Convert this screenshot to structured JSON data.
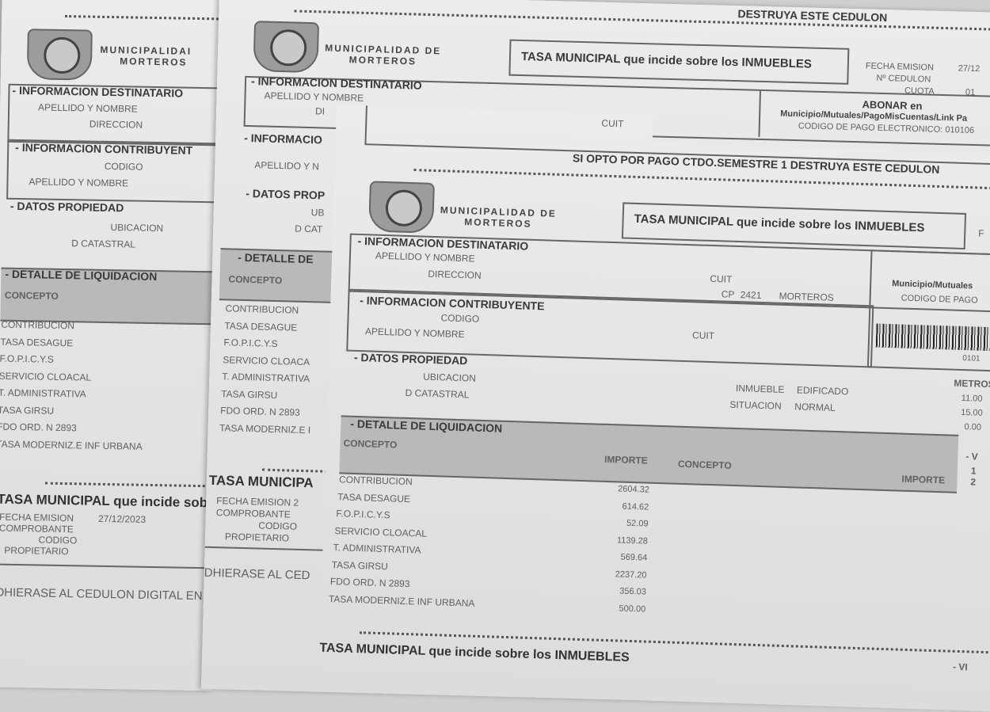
{
  "common": {
    "municipality_line1": "MUNICIPALIDAD DE",
    "municipality_line2": "MORTEROS",
    "municipality_cut": "MUNICIPALIDAI",
    "title": "TASA MUNICIPAL que incide sobre los INMUEBLES"
  },
  "left_sheet": {
    "sec_destinatario": "- INFORMACION DESTINATARIO",
    "apellido": "APELLIDO Y NOMBRE",
    "direccion": "DIRECCION",
    "sec_contribuyente": "- INFORMACION CONTRIBUYENT",
    "codigo": "CODIGO",
    "apellido2": "APELLIDO Y NOMBRE",
    "sec_propiedad": "- DATOS PROPIEDAD",
    "ubicacion": "UBICACION",
    "catastral": "D CATASTRAL",
    "sec_detalle": "- DETALLE DE LIQUIDACION",
    "concepto": "CONCEPTO",
    "items": [
      "CONTRIBUCION",
      "TASA DESAGUE",
      "F.O.P.I.C.Y.S",
      "SERVICIO CLOACAL",
      "T. ADMINISTRATIVA",
      "TASA GIRSU",
      "FDO ORD. N 2893",
      "TASA MODERNIZ.E INF URBANA"
    ],
    "stub_title": "TASA MUNICIPAL que incide sob",
    "fecha_label": "FECHA EMISION",
    "fecha_value": "27/12/2023",
    "comprobante": "COMPROBANTE",
    "codigo_stub": "CODIGO",
    "propietario": "PROPIETARIO",
    "footer": "DHIERASE AL CEDULON DIGITAL EN"
  },
  "middle_sheet": {
    "top_text": "DESTRUYA ESTE CEDULON",
    "fecha_label": "FECHA EMISION",
    "fecha_value": "27/12",
    "cedulon_label": "Nº CEDULON",
    "cuota_label": "CUOTA",
    "cuota_value": "01",
    "sec_destinatario": "- INFORMACION DESTINATARIO",
    "apellido": "APELLIDO Y NOMBRE",
    "direccion_cut": "DI",
    "cuit": "CUIT",
    "abonar": "ABONAR en",
    "abonar_where": "Municipio/Mutuales/PagoMisCuentas/Link Pa",
    "codigo_pago": "CODIGO DE PAGO ELECTRONICO: 010106",
    "sec_contribuyente": "- INFORMACIO",
    "apellido2": "APELLIDO Y N",
    "sec_propiedad": "- DATOS PROP",
    "ubicacion": "UB",
    "catastral": "D CAT",
    "sec_detalle": "- DETALLE DE",
    "concepto": "CONCEPTO",
    "items": [
      "CONTRIBUCION",
      "TASA DESAGUE",
      "F.O.P.I.C.Y.S",
      "SERVICIO CLOACA",
      "T. ADMINISTRATIVA",
      "TASA GIRSU",
      "FDO ORD. N 2893",
      "TASA MODERNIZ.E I"
    ],
    "stub_title": "TASA MUNICIPA",
    "stub_fecha": "FECHA EMISION 2",
    "comprobante": "COMPROBANTE",
    "codigo_stub": "CODIGO",
    "propietario": "PROPIETARIO",
    "footer": "DHIERASE AL CED"
  },
  "front_sheet": {
    "cuit_top": "CUIT",
    "opto": "SI OPTO POR PAGO CTDO.SEMESTRE 1 DESTRUYA ESTE CEDULON",
    "fecha_cut": "F",
    "sec_destinatario": "- INFORMACION DESTINATARIO",
    "apellido": "APELLIDO Y NOMBRE",
    "direccion": "DIRECCION",
    "cuit": "CUIT",
    "cp": "CP",
    "cp_value": "2421",
    "localidad": "MORTEROS",
    "abonar_cut": "A",
    "abonar_where": "Municipio/Mutuales",
    "codigo_pago": "CODIGO DE PAGO",
    "barcode_number": "0101",
    "sec_contribuyente": "- INFORMACION CONTRIBUYENTE",
    "codigo": "CODIGO",
    "apellido2": "APELLIDO Y NOMBRE",
    "cuit2": "CUIT",
    "sec_propiedad": "- DATOS PROPIEDAD",
    "ubicacion": "UBICACION",
    "catastral": "D CATASTRAL",
    "inmueble_label": "INMUEBLE",
    "inmueble_value": "EDIFICADO",
    "situacion_label": "SITUACION",
    "situacion_value": "NORMAL",
    "metros_label": "METROS",
    "metros": [
      "11.00",
      "15.00",
      "0.00"
    ],
    "sec_detalle": "- DETALLE DE LIQUIDACION",
    "concepto": "CONCEPTO",
    "importe": "IMPORTE",
    "concepto2": "CONCEPTO",
    "importe2": "IMPORTE",
    "venc_cut": "- V",
    "venc_values": [
      "1",
      "2"
    ],
    "items": [
      {
        "concepto": "CONTRIBUCION",
        "importe": "2604.32"
      },
      {
        "concepto": "TASA DESAGUE",
        "importe": "614.62"
      },
      {
        "concepto": "F.O.P.I.C.Y.S",
        "importe": "52.09"
      },
      {
        "concepto": "SERVICIO CLOACAL",
        "importe": "1139.28"
      },
      {
        "concepto": "T. ADMINISTRATIVA",
        "importe": "569.64"
      },
      {
        "concepto": "TASA GIRSU",
        "importe": "2237.20"
      },
      {
        "concepto": "FDO ORD. N 2893",
        "importe": "356.03"
      },
      {
        "concepto": "TASA MODERNIZ.E INF URBANA",
        "importe": "500.00"
      }
    ],
    "stub_title": "TASA MUNICIPAL que incide sobre los INMUEBLES",
    "stub_venc_cut": "- VI"
  }
}
